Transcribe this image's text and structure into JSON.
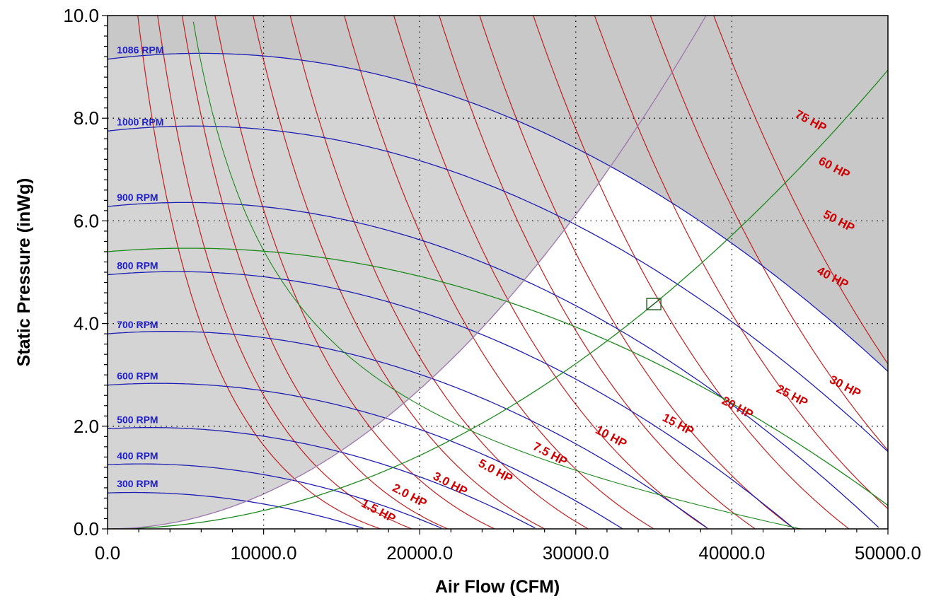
{
  "chart_data": {
    "type": "line",
    "title": "",
    "xlabel": "Air Flow (CFM)",
    "ylabel": "Static Pressure (inWg)",
    "xlim": [
      0,
      50000
    ],
    "ylim": [
      0,
      10
    ],
    "x_ticks": [
      0,
      10000,
      20000,
      30000,
      40000,
      50000
    ],
    "x_tick_labels": [
      "0.0",
      "10000.0",
      "20000.0",
      "30000.0",
      "40000.0",
      "50000.0"
    ],
    "y_ticks": [
      0,
      2,
      4,
      6,
      8,
      10
    ],
    "y_tick_labels": [
      "0.0",
      "2.0",
      "4.0",
      "6.0",
      "8.0",
      "10.0"
    ],
    "grid": true,
    "colors": {
      "shaded_region": "#d4d4d4",
      "max_rpm_region": "#c8c8c8",
      "rpm_curve": "#1f1fb4",
      "hp_curve": "#c02020",
      "system_curve": "#1a8a1a",
      "surge_line": "#a07ab0"
    },
    "rpm_curves": [
      {
        "label": "300 RPM",
        "rpm": 300,
        "shutoff_pressure": 0.7,
        "free_delivery": 16500
      },
      {
        "label": "400 RPM",
        "rpm": 400,
        "shutoff_pressure": 1.25,
        "free_delivery": 21500
      },
      {
        "label": "500 RPM",
        "rpm": 500,
        "shutoff_pressure": 1.95,
        "free_delivery": 27500
      },
      {
        "label": "600 RPM",
        "rpm": 600,
        "shutoff_pressure": 2.8,
        "free_delivery": 33000
      },
      {
        "label": "700 RPM",
        "rpm": 700,
        "shutoff_pressure": 3.8,
        "free_delivery": 38500
      },
      {
        "label": "800 RPM",
        "rpm": 800,
        "shutoff_pressure": 4.95,
        "free_delivery": 44000
      },
      {
        "label": "900 RPM",
        "rpm": 900,
        "shutoff_pressure": 6.28,
        "free_delivery": 49500
      },
      {
        "label": "1000 RPM",
        "rpm": 1000,
        "shutoff_pressure": 7.75,
        "free_delivery": 55000
      },
      {
        "label": "1086 RPM",
        "rpm": 1086,
        "shutoff_pressure": 9.15,
        "free_delivery": 59800
      }
    ],
    "hp_curves": [
      {
        "label": "1.5 HP",
        "x_intercept": 17500
      },
      {
        "label": "2.0 HP",
        "x_intercept": 19500
      },
      {
        "label": "3.0 HP",
        "x_intercept": 21800
      },
      {
        "label": "5.0 HP",
        "x_intercept": 24800
      },
      {
        "label": "7.5 HP",
        "x_intercept": 28000
      },
      {
        "label": "10 HP",
        "x_intercept": 30800
      },
      {
        "label": "15 HP",
        "x_intercept": 35000
      },
      {
        "label": "20 HP",
        "x_intercept": 38500
      },
      {
        "label": "25 HP",
        "x_intercept": 41500
      },
      {
        "label": "30 HP",
        "x_intercept": 44000
      },
      {
        "label": "40 HP",
        "x_intercept": 47500
      },
      {
        "label": "50 HP",
        "x_intercept": 51500
      },
      {
        "label": "60 HP",
        "x_intercept": 55000
      },
      {
        "label": "75 HP",
        "x_intercept": 59000
      }
    ],
    "system_curve": {
      "description_points": [
        [
          0,
          0
        ],
        [
          10000,
          0.36
        ],
        [
          20000,
          1.43
        ],
        [
          35000,
          4.38
        ],
        [
          50000,
          8.95
        ]
      ]
    },
    "operating_point": {
      "x": 35000,
      "y": 4.38
    },
    "operating_rpm_curve": {
      "shutoff_pressure": 5.4
    },
    "surge_line_points": [
      [
        0,
        0
      ],
      [
        10000,
        0.68
      ],
      [
        20000,
        2.7
      ],
      [
        30000,
        6.1
      ],
      [
        37000,
        8.35
      ],
      [
        40000,
        10
      ]
    ]
  }
}
